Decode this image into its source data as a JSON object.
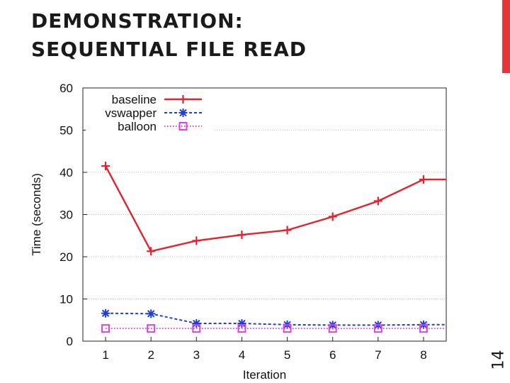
{
  "slide": {
    "title_line1": "DEMONSTRATION:",
    "title_line2": "SEQUENTIAL FILE READ",
    "number": "14",
    "accent_color": "#e5343a"
  },
  "chart_data": {
    "type": "line",
    "title": "",
    "xlabel": "Iteration",
    "ylabel": "Time (seconds)",
    "x": [
      1,
      2,
      3,
      4,
      5,
      6,
      7,
      8
    ],
    "xlim": [
      0.5,
      8.5
    ],
    "ylim": [
      0,
      60
    ],
    "yticks": [
      0,
      10,
      20,
      30,
      40,
      50,
      60
    ],
    "grid": true,
    "legend_position": "top-left",
    "series": [
      {
        "name": "baseline",
        "values": [
          41.5,
          21.3,
          23.8,
          25.2,
          26.3,
          29.5,
          33.2,
          38.3
        ],
        "color": "#e3222e",
        "marker": "plus",
        "line": "solid"
      },
      {
        "name": "vswapper",
        "values": [
          6.6,
          6.5,
          4.2,
          4.2,
          3.9,
          3.8,
          3.8,
          3.9
        ],
        "color": "#1f3fd6",
        "marker": "asterisk",
        "line": "dashed"
      },
      {
        "name": "balloon",
        "values": [
          3.0,
          3.0,
          3.0,
          3.0,
          3.0,
          3.0,
          3.0,
          3.0
        ],
        "color": "#e040e0",
        "marker": "square",
        "line": "dotted"
      }
    ]
  }
}
